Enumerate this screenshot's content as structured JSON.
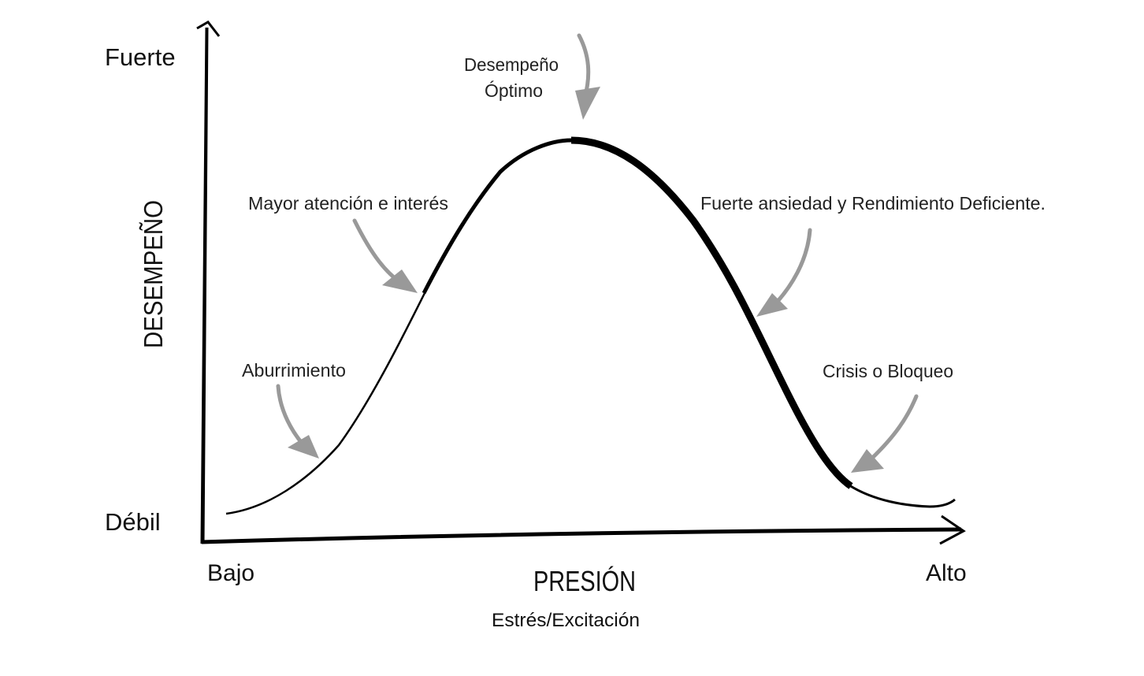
{
  "y_axis": {
    "label": "DESEMPEÑO",
    "top": "Fuerte",
    "bottom": "Débil"
  },
  "x_axis": {
    "label": "PRESIÓN",
    "sublabel": "Estrés/Excitación",
    "left": "Bajo",
    "right": "Alto"
  },
  "annotations": {
    "optimal": [
      "Desempeño",
      "Óptimo"
    ],
    "attention": "Mayor atención e interés",
    "anxiety": "Fuerte ansiedad y Rendimiento Deficiente.",
    "boredom": "Aburrimiento",
    "crisis": "Crisis o Bloqueo"
  }
}
